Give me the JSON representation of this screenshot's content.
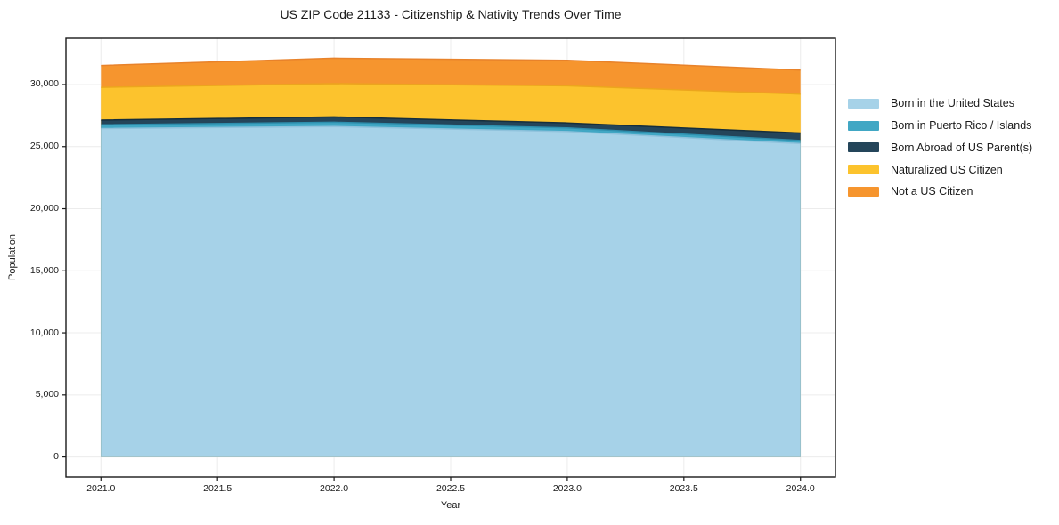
{
  "chart_data": {
    "type": "area",
    "stacked": true,
    "title": "US ZIP Code 21133 - Citizenship & Nativity Trends Over Time",
    "xlabel": "Year",
    "ylabel": "Population",
    "x": [
      2021,
      2022,
      2023,
      2024
    ],
    "series": [
      {
        "id": "born-us",
        "name": "Born in the United States",
        "color": "#A6D2E8",
        "edge_color": "#8FC2DC",
        "values": [
          26450,
          26620,
          26210,
          25240
        ]
      },
      {
        "id": "puerto-rico",
        "name": "Born in Puerto Rico / Islands",
        "color": "#41A7C4",
        "edge_color": "#2E8FAE",
        "values": [
          300,
          340,
          290,
          250
        ]
      },
      {
        "id": "born-abroad",
        "name": "Born Abroad of US Parent(s)",
        "color": "#24455A",
        "edge_color": "#152E3D",
        "values": [
          380,
          430,
          400,
          600
        ]
      },
      {
        "id": "naturalized",
        "name": "Naturalized US Citizen",
        "color": "#FCC32D",
        "edge_color": "#ECA51D",
        "values": [
          2650,
          2680,
          3000,
          3140
        ]
      },
      {
        "id": "not-citizen",
        "name": "Not a US Citizen",
        "color": "#F6952E",
        "edge_color": "#E8822A",
        "values": [
          1750,
          2050,
          2050,
          1940
        ]
      }
    ],
    "x_ticks": [
      {
        "value": 2021.0,
        "label": "2021.0"
      },
      {
        "value": 2021.5,
        "label": "2021.5"
      },
      {
        "value": 2022.0,
        "label": "2022.0"
      },
      {
        "value": 2022.5,
        "label": "2022.5"
      },
      {
        "value": 2023.0,
        "label": "2023.0"
      },
      {
        "value": 2023.5,
        "label": "2023.5"
      },
      {
        "value": 2024.0,
        "label": "2024.0"
      }
    ],
    "y_ticks": [
      {
        "value": 0,
        "label": "0"
      },
      {
        "value": 5000,
        "label": "5,000"
      },
      {
        "value": 10000,
        "label": "10,000"
      },
      {
        "value": 15000,
        "label": "15,000"
      },
      {
        "value": 20000,
        "label": "20,000"
      },
      {
        "value": 25000,
        "label": "25,000"
      },
      {
        "value": 30000,
        "label": "30,000"
      }
    ],
    "xlim": [
      2020.85,
      2024.15
    ],
    "ylim": [
      -1606,
      33726
    ],
    "grid": true,
    "legend_position": "right",
    "spine_color": "#1a1a1a",
    "grid_color": "#ececec"
  }
}
